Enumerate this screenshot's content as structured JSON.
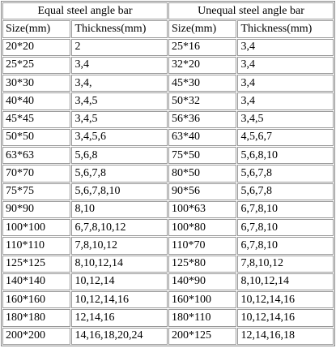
{
  "table": {
    "headers": [
      "Equal steel angle bar",
      "Unequal steel angle bar"
    ],
    "columns": [
      "Size(mm)",
      "Thickness(mm)",
      "Size(mm)",
      "Thickness(mm)"
    ],
    "rows": [
      [
        "20*20",
        "2",
        "25*16",
        "3,4"
      ],
      [
        "25*25",
        "3,4",
        "32*20",
        "3,4"
      ],
      [
        "30*30",
        "3,4,",
        "45*30",
        "3,4"
      ],
      [
        "40*40",
        "3,4,5",
        "50*32",
        "3,4"
      ],
      [
        "45*45",
        "3,4,5",
        "56*36",
        "3,4,5"
      ],
      [
        "50*50",
        "3,4,5,6",
        "63*40",
        "4,5,6,7"
      ],
      [
        "63*63",
        "5,6,8",
        "75*50",
        "5,6,8,10"
      ],
      [
        "70*70",
        "5,6,7,8",
        "80*50",
        "5,6,7,8"
      ],
      [
        "75*75",
        "5,6,7,8,10",
        "90*56",
        "5,6,7,8"
      ],
      [
        "90*90",
        "8,10",
        "100*63",
        "6,7,8,10"
      ],
      [
        "100*100",
        "6,7,8,10,12",
        "100*80",
        "6,7,8,10"
      ],
      [
        "110*110",
        "7,8,10,12",
        "110*70",
        "6,7,8,10"
      ],
      [
        "125*125",
        "8,10,12,14",
        "125*80",
        "7,8,10,12"
      ],
      [
        "140*140",
        "10,12,14",
        "140*90",
        "8,10,12,14"
      ],
      [
        "160*160",
        "10,12,14,16",
        "160*100",
        "10,12,14,16"
      ],
      [
        "180*180",
        "12,14,16",
        "180*110",
        "10,12,14,16"
      ],
      [
        "200*200",
        "14,16,18,20,24",
        "200*125",
        "12,14,16,18"
      ]
    ]
  }
}
